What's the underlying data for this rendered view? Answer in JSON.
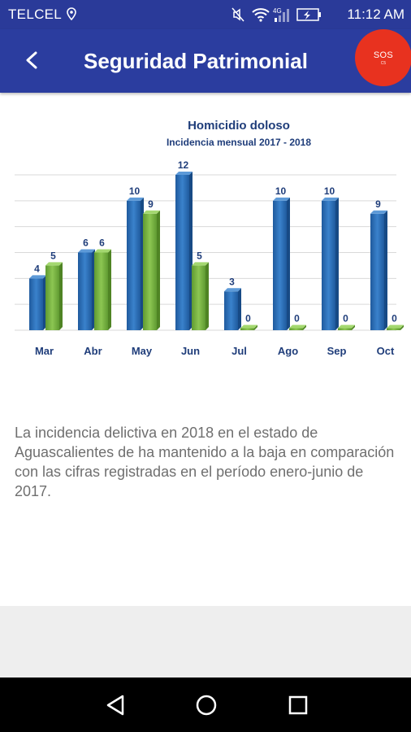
{
  "status_bar": {
    "carrier": "TELCEL",
    "network": "4G",
    "time": "11:12 AM"
  },
  "app_bar": {
    "title": "Seguridad Patrimonial",
    "sos_label": "SOS",
    "sos_sublabel": "C5",
    "sos_color": "#e8321f",
    "bar_color": "#2b3d9f"
  },
  "chart_data": {
    "type": "bar",
    "title": "Homicidio doloso",
    "subtitle": "Incidencia mensual 2017 - 2018",
    "categories": [
      "Mar",
      "Abr",
      "May",
      "Jun",
      "Jul",
      "Ago",
      "Sep",
      "Oct"
    ],
    "series": [
      {
        "values": [
          4,
          6,
          10,
          12,
          3,
          10,
          10,
          9
        ],
        "color": "#2a6fb8"
      },
      {
        "values": [
          5,
          6,
          9,
          5,
          0,
          0,
          0,
          0
        ],
        "color": "#7ab547"
      }
    ],
    "ylim": [
      0,
      12
    ],
    "grid": true
  },
  "description": "La incidencia delictiva en 2018 en el estado de Aguascalientes de ha mantenido a la baja en comparación con las cifras registradas en el período enero-junio de 2017."
}
